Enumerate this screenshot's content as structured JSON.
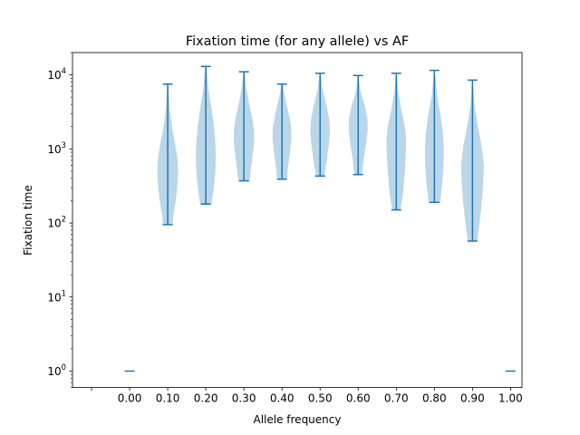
{
  "chart_data": {
    "type": "violin",
    "title": "Fixation time (for any allele) vs AF",
    "xlabel": "Allele frequency",
    "ylabel": "Fixation time",
    "yscale": "log",
    "ylim": [
      0.6,
      20000
    ],
    "xlim": [
      -0.5,
      11.3
    ],
    "grid": false,
    "yticks": [
      {
        "value": 1,
        "base": "10",
        "exp": "0"
      },
      {
        "value": 10,
        "base": "10",
        "exp": "1"
      },
      {
        "value": 100,
        "base": "10",
        "exp": "2"
      },
      {
        "value": 1000,
        "base": "10",
        "exp": "3"
      },
      {
        "value": 10000,
        "base": "10",
        "exp": "4"
      }
    ],
    "categories": [
      "0.00",
      "0.10",
      "0.20",
      "0.30",
      "0.40",
      "0.50",
      "0.60",
      "0.70",
      "0.80",
      "0.90",
      "1.00"
    ],
    "violins": [
      {
        "category": "0.00",
        "min": 1,
        "max": 1,
        "profile": []
      },
      {
        "category": "0.10",
        "min": 95,
        "max": 7500,
        "profile": [
          [
            95,
            0.25
          ],
          [
            130,
            0.3
          ],
          [
            200,
            0.42
          ],
          [
            300,
            0.5
          ],
          [
            500,
            0.55
          ],
          [
            800,
            0.5
          ],
          [
            1200,
            0.38
          ],
          [
            2000,
            0.22
          ],
          [
            3500,
            0.1
          ],
          [
            7500,
            0.02
          ]
        ]
      },
      {
        "category": "0.20",
        "min": 180,
        "max": 13000,
        "profile": [
          [
            180,
            0.3
          ],
          [
            300,
            0.42
          ],
          [
            500,
            0.5
          ],
          [
            800,
            0.53
          ],
          [
            1200,
            0.5
          ],
          [
            2000,
            0.43
          ],
          [
            3500,
            0.3
          ],
          [
            6000,
            0.15
          ],
          [
            13000,
            0.03
          ]
        ]
      },
      {
        "category": "0.30",
        "min": 370,
        "max": 11000,
        "profile": [
          [
            370,
            0.3
          ],
          [
            500,
            0.35
          ],
          [
            800,
            0.45
          ],
          [
            1200,
            0.53
          ],
          [
            1800,
            0.53
          ],
          [
            2500,
            0.45
          ],
          [
            4000,
            0.28
          ],
          [
            7000,
            0.1
          ],
          [
            11000,
            0.02
          ]
        ]
      },
      {
        "category": "0.40",
        "min": 390,
        "max": 7500,
        "profile": [
          [
            390,
            0.25
          ],
          [
            600,
            0.33
          ],
          [
            900,
            0.42
          ],
          [
            1400,
            0.5
          ],
          [
            2000,
            0.48
          ],
          [
            3000,
            0.35
          ],
          [
            5000,
            0.15
          ],
          [
            7500,
            0.03
          ]
        ]
      },
      {
        "category": "0.50",
        "min": 430,
        "max": 10500,
        "profile": [
          [
            430,
            0.22
          ],
          [
            700,
            0.35
          ],
          [
            1100,
            0.45
          ],
          [
            1700,
            0.52
          ],
          [
            2500,
            0.48
          ],
          [
            4000,
            0.32
          ],
          [
            6500,
            0.12
          ],
          [
            10500,
            0.02
          ]
        ]
      },
      {
        "category": "0.60",
        "min": 450,
        "max": 9800,
        "profile": [
          [
            450,
            0.2
          ],
          [
            700,
            0.28
          ],
          [
            1100,
            0.4
          ],
          [
            1800,
            0.5
          ],
          [
            2600,
            0.48
          ],
          [
            3800,
            0.35
          ],
          [
            6000,
            0.12
          ],
          [
            9800,
            0.02
          ]
        ]
      },
      {
        "category": "0.70",
        "min": 150,
        "max": 10500,
        "profile": [
          [
            150,
            0.22
          ],
          [
            250,
            0.35
          ],
          [
            500,
            0.45
          ],
          [
            900,
            0.5
          ],
          [
            1400,
            0.52
          ],
          [
            2200,
            0.42
          ],
          [
            3500,
            0.25
          ],
          [
            6000,
            0.1
          ],
          [
            10500,
            0.02
          ]
        ]
      },
      {
        "category": "0.80",
        "min": 190,
        "max": 11500,
        "profile": [
          [
            190,
            0.3
          ],
          [
            350,
            0.42
          ],
          [
            600,
            0.48
          ],
          [
            1000,
            0.5
          ],
          [
            1600,
            0.45
          ],
          [
            2800,
            0.33
          ],
          [
            5000,
            0.15
          ],
          [
            11500,
            0.02
          ]
        ]
      },
      {
        "category": "0.90",
        "min": 57,
        "max": 8500,
        "profile": [
          [
            57,
            0.25
          ],
          [
            90,
            0.35
          ],
          [
            150,
            0.45
          ],
          [
            300,
            0.55
          ],
          [
            600,
            0.6
          ],
          [
            1100,
            0.48
          ],
          [
            2000,
            0.28
          ],
          [
            4000,
            0.1
          ],
          [
            8500,
            0.02
          ]
        ]
      },
      {
        "category": "1.00",
        "min": 1,
        "max": 1,
        "profile": []
      }
    ],
    "colors": {
      "line": "#1f77b4",
      "fill": "#1f77b4",
      "fill_opacity": 0.3
    }
  }
}
